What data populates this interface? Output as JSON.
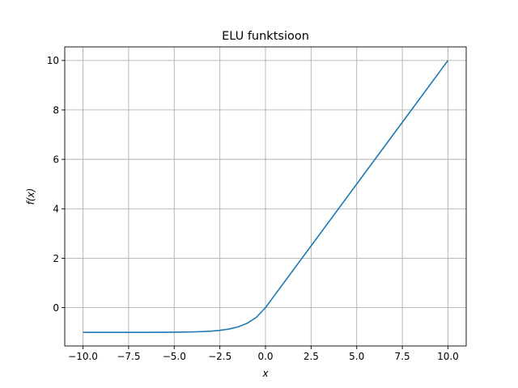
{
  "chart_data": {
    "type": "line",
    "title": "ELU funktsioon",
    "xlabel": "x",
    "ylabel": "f(x)",
    "xlim": [
      -11.0,
      11.0
    ],
    "ylim": [
      -1.55,
      10.55
    ],
    "xticks": [
      -10.0,
      -7.5,
      -5.0,
      -2.5,
      0.0,
      2.5,
      5.0,
      7.5,
      10.0
    ],
    "xtick_labels": [
      "−10.0",
      "−7.5",
      "−5.0",
      "−2.5",
      "0.0",
      "2.5",
      "5.0",
      "7.5",
      "10.0"
    ],
    "yticks": [
      0,
      2,
      4,
      6,
      8,
      10
    ],
    "ytick_labels": [
      "0",
      "2",
      "4",
      "6",
      "8",
      "10"
    ],
    "grid": true,
    "series": [
      {
        "color": "#1f77b4",
        "x": [
          -10.0,
          -9.5,
          -9.0,
          -8.5,
          -8.0,
          -7.5,
          -7.0,
          -6.5,
          -6.0,
          -5.5,
          -5.0,
          -4.5,
          -4.0,
          -3.5,
          -3.0,
          -2.5,
          -2.0,
          -1.5,
          -1.0,
          -0.5,
          0.0,
          0.5,
          1.0,
          2.0,
          4.0,
          6.0,
          8.0,
          10.0
        ],
        "y": [
          -1.0,
          -0.9999,
          -0.9999,
          -0.9998,
          -0.9997,
          -0.9994,
          -0.9991,
          -0.9985,
          -0.9975,
          -0.9959,
          -0.9933,
          -0.9889,
          -0.9817,
          -0.9698,
          -0.9502,
          -0.9179,
          -0.8647,
          -0.7769,
          -0.6321,
          -0.3935,
          0.0,
          0.5,
          1.0,
          2.0,
          4.0,
          6.0,
          8.0,
          10.0
        ]
      }
    ]
  }
}
